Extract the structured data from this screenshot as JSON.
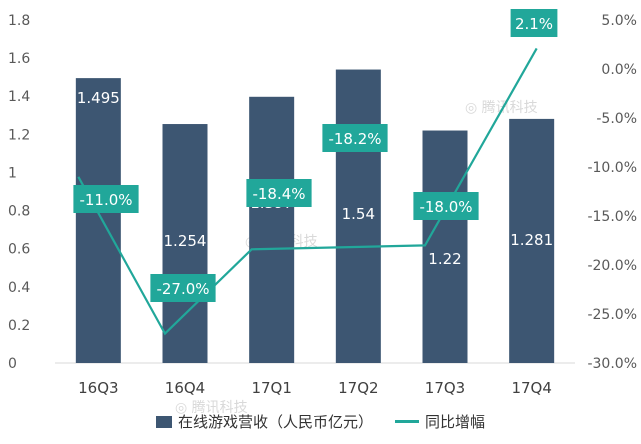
{
  "chart_data": {
    "type": "bar+line",
    "categories": [
      "16Q3",
      "16Q4",
      "17Q1",
      "17Q2",
      "17Q3",
      "17Q4"
    ],
    "series": [
      {
        "name": "在线游戏营收（人民币亿元）",
        "type": "bar",
        "axis": "left",
        "values": [
          1.495,
          1.254,
          1.397,
          1.54,
          1.22,
          1.281
        ],
        "labels": [
          "1.495",
          "1.254",
          "1.397",
          "1.54",
          "1.22",
          "1.281"
        ],
        "color": "#3d5672"
      },
      {
        "name": "同比增幅",
        "type": "line",
        "axis": "right",
        "values": [
          -11.0,
          -27.0,
          -18.4,
          -18.2,
          -18.0,
          2.1
        ],
        "labels": [
          "-11.0%",
          "-27.0%",
          "-18.4%",
          "-18.2%",
          "-18.0%",
          "2.1%"
        ],
        "color": "#21a79a"
      }
    ],
    "y_left": {
      "min": 0,
      "max": 1.8,
      "ticks": [
        "0",
        "0.2",
        "0.4",
        "0.6",
        "0.8",
        "1",
        "1.2",
        "1.4",
        "1.6",
        "1.8"
      ]
    },
    "y_right": {
      "min": -30,
      "max": 5,
      "ticks": [
        "5.0%",
        "0.0%",
        "-5.0%",
        "-10.0%",
        "-15.0%",
        "-20.0%",
        "-25.0%",
        "-30.0%"
      ]
    },
    "grid": false,
    "legend_position": "bottom"
  },
  "watermark": "腾讯科技"
}
